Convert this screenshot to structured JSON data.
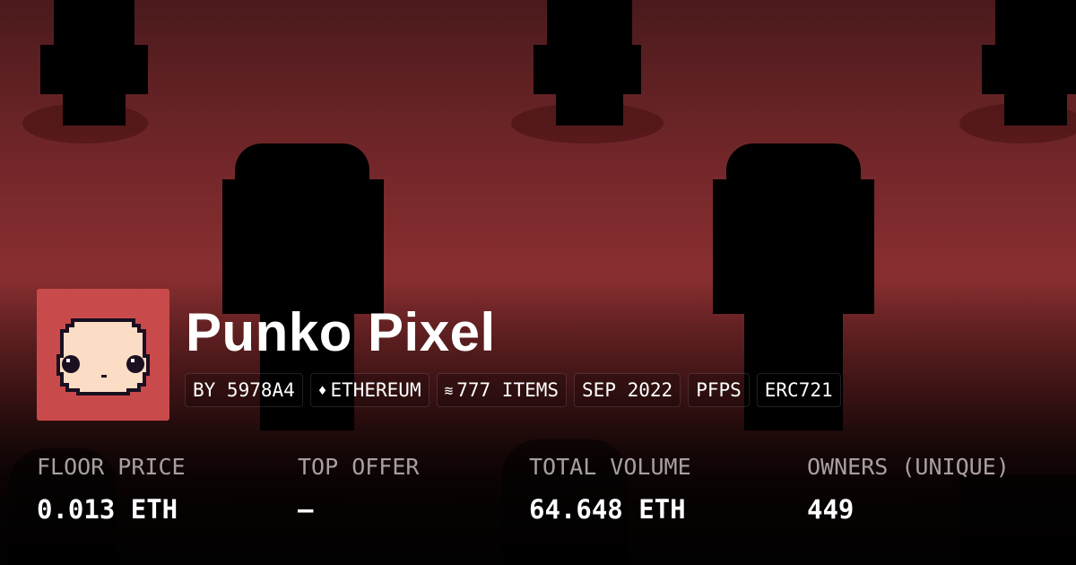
{
  "collection": {
    "name": "Punko Pixel",
    "avatar_bg": "#c94a4a"
  },
  "tags": [
    {
      "label": "BY 5978A4"
    },
    {
      "label": "ETHEREUM",
      "icon": "ethereum-icon"
    },
    {
      "label": "777 ITEMS",
      "icon": "layers-icon"
    },
    {
      "label": "SEP 2022"
    },
    {
      "label": "PFPS"
    },
    {
      "label": "ERC721"
    }
  ],
  "stats": [
    {
      "label": "FLOOR PRICE",
      "value": "0.013 ETH"
    },
    {
      "label": "TOP OFFER",
      "value": "–"
    },
    {
      "label": "TOTAL VOLUME",
      "value": "64.648 ETH"
    },
    {
      "label": "OWNERS (UNIQUE)",
      "value": "449"
    }
  ]
}
